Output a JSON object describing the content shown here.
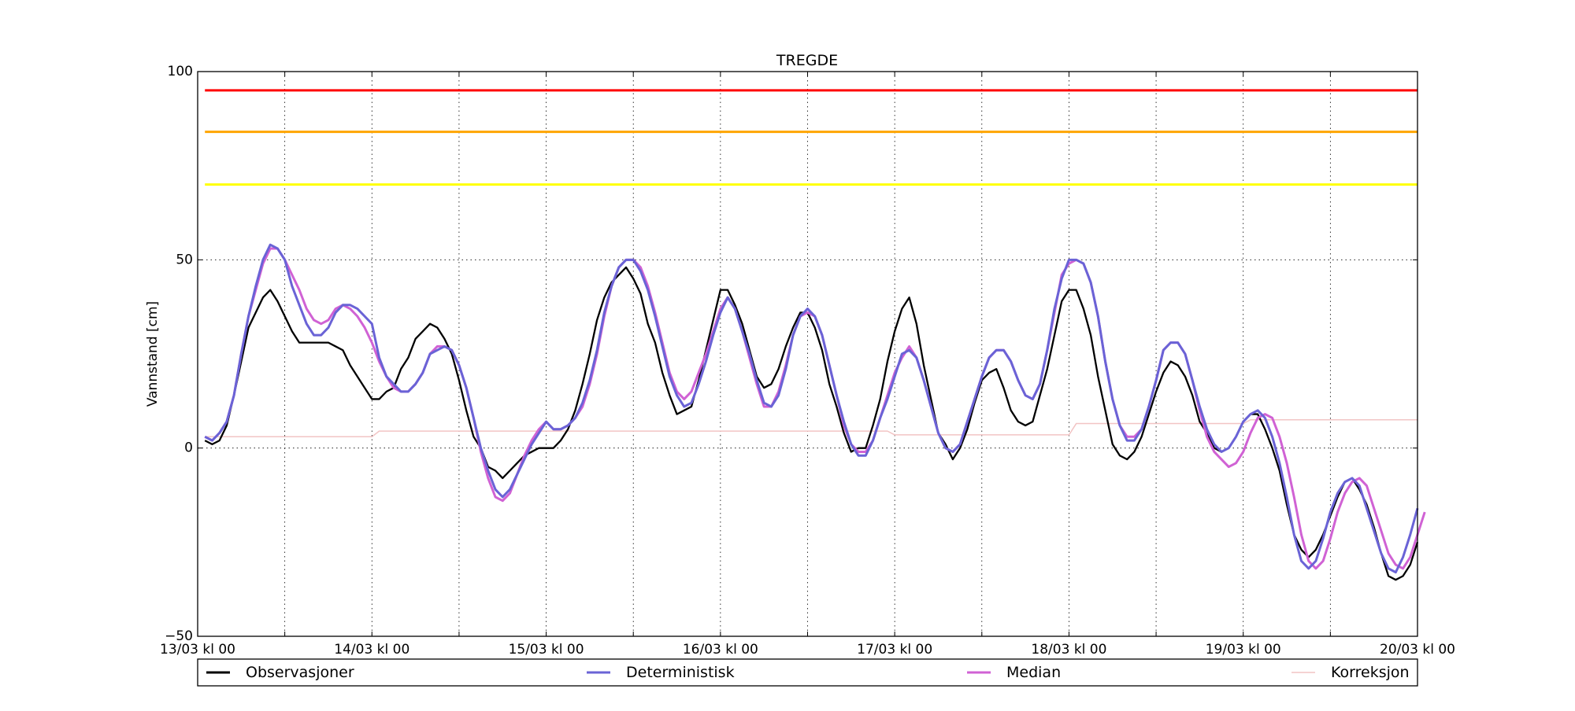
{
  "chart_data": {
    "type": "line",
    "title": "TREGDE",
    "xlabel": "",
    "ylabel": "Vannstand [cm]",
    "ylim": [
      -50,
      100
    ],
    "xlim_hours": [
      0,
      168
    ],
    "yticks": [
      -50,
      0,
      50,
      100
    ],
    "ytick_labels": [
      "−50",
      "0",
      "50",
      "100"
    ],
    "xtick_labels": [
      "13/03 kl 00",
      "14/03 kl 00",
      "15/03 kl 00",
      "16/03 kl 00",
      "17/03 kl 00",
      "18/03 kl 00",
      "19/03 kl 00",
      "20/03 kl 00"
    ],
    "grid": true,
    "legend_position": "bottom-outside",
    "thresholds": [
      {
        "value": 95,
        "color": "#ff0000"
      },
      {
        "value": 84,
        "color": "#ffa500"
      },
      {
        "value": 70,
        "color": "#ffff00"
      }
    ],
    "series": [
      {
        "name": "Observasjoner",
        "color": "#000000",
        "start_hour": 1,
        "values": [
          2,
          1,
          2,
          6,
          14,
          23,
          32,
          36,
          40,
          42,
          39,
          35,
          31,
          28,
          28,
          28,
          28,
          28,
          27,
          26,
          22,
          19,
          16,
          13,
          13,
          15,
          16,
          21,
          24,
          29,
          31,
          33,
          32,
          29,
          25,
          18,
          10,
          3,
          0,
          -5,
          -6,
          -8,
          -6,
          -4,
          -2,
          -1,
          0,
          0,
          0,
          2,
          5,
          10,
          17,
          25,
          34,
          40,
          44,
          46,
          48,
          45,
          41,
          33,
          28,
          20,
          14,
          9,
          10,
          11,
          18,
          26,
          34,
          42,
          42,
          38,
          33,
          26,
          19,
          16,
          17,
          21,
          27,
          32,
          36,
          36,
          32,
          26,
          17,
          11,
          4,
          -1,
          0,
          0,
          6,
          13,
          23,
          31,
          37,
          40,
          33,
          22,
          13,
          4,
          1,
          -3,
          0,
          5,
          12,
          18,
          20,
          21,
          16,
          10,
          7,
          6,
          7,
          14,
          21,
          30,
          39,
          42,
          42,
          37,
          30,
          19,
          10,
          1,
          -2,
          -3,
          -1,
          3,
          9,
          15,
          20,
          23,
          22,
          19,
          14,
          7,
          4,
          0,
          -1,
          0,
          3,
          7,
          9,
          9,
          5,
          0,
          -6,
          -15,
          -23,
          -27,
          -29,
          -27,
          -23,
          -18,
          -13,
          -9,
          -8,
          -11,
          -15,
          -21,
          -28,
          -34,
          -35,
          -34,
          -31,
          -25
        ]
      },
      {
        "name": "Deterministisk",
        "color": "#6a63d6",
        "start_hour": 1,
        "values": [
          3,
          2,
          4,
          7,
          14,
          25,
          35,
          43,
          50,
          54,
          53,
          50,
          43,
          38,
          33,
          30,
          30,
          32,
          36,
          38,
          38,
          37,
          35,
          33,
          24,
          19,
          17,
          15,
          15,
          17,
          20,
          25,
          26,
          27,
          26,
          22,
          16,
          8,
          0,
          -6,
          -11,
          -13,
          -11,
          -7,
          -3,
          1,
          4,
          7,
          5,
          5,
          6,
          8,
          12,
          18,
          26,
          36,
          43,
          48,
          50,
          50,
          47,
          42,
          35,
          27,
          19,
          14,
          11,
          12,
          17,
          23,
          30,
          36,
          40,
          37,
          31,
          25,
          18,
          12,
          11,
          14,
          21,
          30,
          35,
          37,
          35,
          30,
          22,
          14,
          7,
          1,
          -2,
          -2,
          2,
          8,
          13,
          19,
          25,
          26,
          24,
          18,
          11,
          4,
          0,
          -1,
          1,
          7,
          13,
          19,
          24,
          26,
          26,
          23,
          18,
          14,
          13,
          17,
          26,
          37,
          45,
          50,
          50,
          49,
          44,
          35,
          23,
          13,
          6,
          2,
          2,
          5,
          11,
          18,
          26,
          28,
          28,
          25,
          18,
          11,
          5,
          1,
          -1,
          0,
          3,
          7,
          9,
          10,
          8,
          3,
          -4,
          -13,
          -23,
          -30,
          -32,
          -30,
          -24,
          -17,
          -12,
          -9,
          -8,
          -10,
          -16,
          -22,
          -28,
          -32,
          -33,
          -29,
          -23,
          -16
        ]
      },
      {
        "name": "Median",
        "color": "#d062d4",
        "start_hour": 1,
        "values": [
          3,
          2,
          4,
          7,
          14,
          25,
          35,
          42,
          49,
          53,
          53,
          50,
          46,
          42,
          37,
          34,
          33,
          34,
          37,
          38,
          37,
          35,
          32,
          28,
          23,
          19,
          16,
          15,
          15,
          17,
          20,
          25,
          27,
          27,
          26,
          22,
          16,
          8,
          -1,
          -8,
          -13,
          -14,
          -12,
          -7,
          -2,
          2,
          5,
          7,
          5,
          5,
          6,
          8,
          11,
          17,
          25,
          35,
          43,
          48,
          50,
          50,
          48,
          43,
          36,
          28,
          20,
          15,
          13,
          15,
          20,
          25,
          31,
          37,
          40,
          37,
          31,
          24,
          17,
          11,
          11,
          15,
          22,
          30,
          35,
          36,
          35,
          30,
          22,
          14,
          6,
          1,
          -1,
          -1,
          2,
          8,
          14,
          20,
          24,
          27,
          24,
          18,
          11,
          4,
          0,
          -1,
          1,
          7,
          13,
          19,
          24,
          26,
          26,
          23,
          18,
          14,
          13,
          17,
          26,
          36,
          46,
          49,
          50,
          49,
          44,
          35,
          23,
          13,
          6,
          3,
          3,
          5,
          11,
          18,
          26,
          28,
          28,
          25,
          18,
          10,
          3,
          -1,
          -3,
          -5,
          -4,
          -1,
          4,
          8,
          9,
          8,
          3,
          -4,
          -13,
          -23,
          -30,
          -32,
          -30,
          -24,
          -17,
          -12,
          -9,
          -8,
          -10,
          -16,
          -22,
          -28,
          -31,
          -32,
          -29,
          -23,
          -17
        ]
      },
      {
        "name": "Korreksjon",
        "color": "#f2c4c4",
        "points": [
          [
            1,
            3
          ],
          [
            24,
            3
          ],
          [
            25,
            4.5
          ],
          [
            95,
            4.5
          ],
          [
            96,
            3.5
          ],
          [
            120,
            3.5
          ],
          [
            121,
            6.5
          ],
          [
            144,
            6.5
          ],
          [
            145,
            7.5
          ],
          [
            168,
            7.5
          ]
        ]
      }
    ]
  }
}
